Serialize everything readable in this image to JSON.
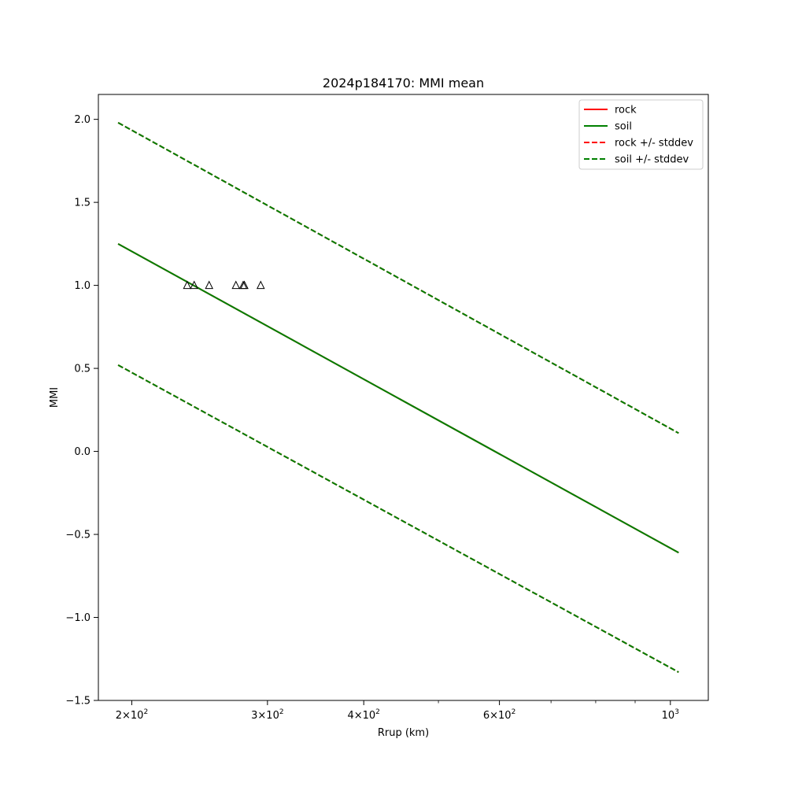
{
  "chart_data": {
    "type": "line",
    "title": "2024p184170: MMI mean",
    "xlabel": "Rrup (km)",
    "ylabel": "MMI",
    "xscale": "log",
    "xlim": [
      181,
      1120
    ],
    "ylim": [
      -1.5,
      2.15
    ],
    "grid": false,
    "legend_position": "top-right",
    "x_ticks": [
      {
        "value": 200,
        "base": "2",
        "exp": "2"
      },
      {
        "value": 300,
        "base": "3",
        "exp": "2"
      },
      {
        "value": 400,
        "base": "4",
        "exp": "2"
      },
      {
        "value": 600,
        "base": "6",
        "exp": "2"
      },
      {
        "value": 1000,
        "base": "",
        "exp": "3"
      }
    ],
    "x_minor_ticks": [
      500,
      700,
      800,
      900
    ],
    "y_ticks": [
      {
        "value": 2.0,
        "label": "2.0"
      },
      {
        "value": 1.5,
        "label": "1.5"
      },
      {
        "value": 1.0,
        "label": "1.0"
      },
      {
        "value": 0.5,
        "label": "0.5"
      },
      {
        "value": 0.0,
        "label": "0.0"
      },
      {
        "value": -0.5,
        "label": "−0.5"
      },
      {
        "value": -1.0,
        "label": "−1.0"
      },
      {
        "value": -1.5,
        "label": "−1.5"
      }
    ],
    "series": [
      {
        "name": "rock",
        "color": "#ff0000",
        "dash": false,
        "x": [
          192,
          1025
        ],
        "y": [
          1.25,
          -0.61
        ]
      },
      {
        "name": "soil",
        "color": "#008000",
        "dash": false,
        "x": [
          192,
          1025
        ],
        "y": [
          1.25,
          -0.61
        ]
      },
      {
        "name": "rock +/- stddev",
        "color": "#ff0000",
        "dash": true,
        "x": [
          192,
          1025
        ],
        "y": [
          1.98,
          0.11
        ],
        "x2": [
          192,
          1025
        ],
        "y2": [
          0.52,
          -1.33
        ]
      },
      {
        "name": "soil +/- stddev",
        "color": "#008000",
        "dash": true,
        "x": [
          192,
          1025
        ],
        "y": [
          1.98,
          0.11
        ],
        "x2": [
          192,
          1025
        ],
        "y2": [
          0.52,
          -1.33
        ]
      }
    ],
    "observations": {
      "marker": "triangle",
      "x": [
        236,
        241,
        252,
        273,
        279,
        280,
        294
      ],
      "y": [
        1.0,
        1.0,
        1.0,
        1.0,
        1.0,
        1.0,
        1.0
      ]
    }
  }
}
